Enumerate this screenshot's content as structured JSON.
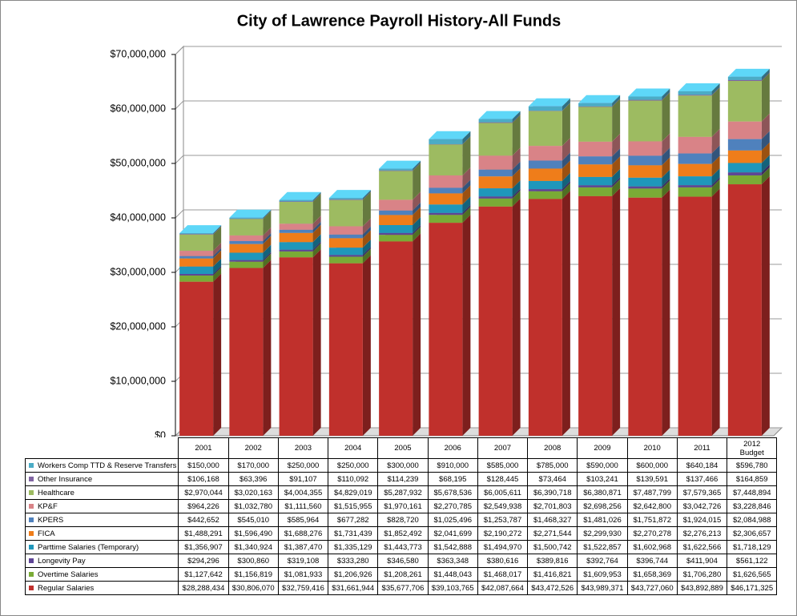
{
  "chart_data": {
    "type": "bar3d-stacked",
    "title": "City of Lawrence Payroll History-All Funds",
    "categories": [
      "2001",
      "2002",
      "2003",
      "2004",
      "2005",
      "2006",
      "2007",
      "2008",
      "2009",
      "2010",
      "2011",
      "2012 Budget"
    ],
    "ylim": [
      0,
      70000000
    ],
    "yticks": [
      {
        "value": 0,
        "label": "$0"
      },
      {
        "value": 10000000,
        "label": "$10,000,000"
      },
      {
        "value": 20000000,
        "label": "$20,000,000"
      },
      {
        "value": 30000000,
        "label": "$30,000,000"
      },
      {
        "value": 40000000,
        "label": "$40,000,000"
      },
      {
        "value": 50000000,
        "label": "$50,000,000"
      },
      {
        "value": 60000000,
        "label": "$60,000,000"
      },
      {
        "value": 70000000,
        "label": "$70,000,000"
      }
    ],
    "grid": true,
    "series": [
      {
        "name": "Regular Salaries",
        "color": "#c0302c",
        "values": [
          28288434,
          30806070,
          32759416,
          31661944,
          35677706,
          39103765,
          42087664,
          43472526,
          43989371,
          43727060,
          43892889,
          46171325
        ],
        "value_labels": [
          "$28,288,434",
          "$30,806,070",
          "$32,759,416",
          "$31,661,944",
          "$35,677,706",
          "$39,103,765",
          "$42,087,664",
          "$43,472,526",
          "$43,989,371",
          "$43,727,060",
          "$43,892,889",
          "$46,171,325"
        ]
      },
      {
        "name": "Overtime Salaries",
        "color": "#7aab36",
        "values": [
          1127642,
          1156819,
          1081933,
          1206926,
          1208261,
          1448043,
          1468017,
          1416821,
          1609953,
          1658369,
          1706280,
          1626565
        ],
        "value_labels": [
          "$1,127,642",
          "$1,156,819",
          "$1,081,933",
          "$1,206,926",
          "$1,208,261",
          "$1,448,043",
          "$1,468,017",
          "$1,416,821",
          "$1,609,953",
          "$1,658,369",
          "$1,706,280",
          "$1,626,565"
        ]
      },
      {
        "name": "Longevity Pay",
        "color": "#5e4596",
        "values": [
          294296,
          300860,
          319108,
          333280,
          346580,
          363348,
          380616,
          389816,
          392764,
          396744,
          411904,
          561122
        ],
        "value_labels": [
          "$294,296",
          "$300,860",
          "$319,108",
          "$333,280",
          "$346,580",
          "$363,348",
          "$380,616",
          "$389,816",
          "$392,764",
          "$396,744",
          "$411,904",
          "$561,122"
        ]
      },
      {
        "name": "Parttime Salaries (Temporary)",
        "color": "#1f97bb",
        "values": [
          1356907,
          1340924,
          1387470,
          1335129,
          1443773,
          1542888,
          1494970,
          1500742,
          1522857,
          1602968,
          1622566,
          1718129
        ],
        "value_labels": [
          "$1,356,907",
          "$1,340,924",
          "$1,387,470",
          "$1,335,129",
          "$1,443,773",
          "$1,542,888",
          "$1,494,970",
          "$1,500,742",
          "$1,522,857",
          "$1,602,968",
          "$1,622,566",
          "$1,718,129"
        ]
      },
      {
        "name": "FICA",
        "color": "#ef7d1a",
        "values": [
          1488291,
          1596490,
          1688276,
          1731439,
          1852492,
          2041699,
          2190272,
          2271544,
          2299930,
          2270278,
          2276213,
          2306657
        ],
        "value_labels": [
          "$1,488,291",
          "$1,596,490",
          "$1,688,276",
          "$1,731,439",
          "$1,852,492",
          "$2,041,699",
          "$2,190,272",
          "$2,271,544",
          "$2,299,930",
          "$2,270,278",
          "$2,276,213",
          "$2,306,657"
        ]
      },
      {
        "name": "KPERS",
        "color": "#4f81bd",
        "values": [
          442652,
          545010,
          585964,
          677282,
          828720,
          1025496,
          1253787,
          1468327,
          1481026,
          1751872,
          1924015,
          2084988
        ],
        "value_labels": [
          "$442,652",
          "$545,010",
          "$585,964",
          "$677,282",
          "$828,720",
          "$1,025,496",
          "$1,253,787",
          "$1,468,327",
          "$1,481,026",
          "$1,751,872",
          "$1,924,015",
          "$2,084,988"
        ]
      },
      {
        "name": "KP&F",
        "color": "#d98387",
        "values": [
          964226,
          1032780,
          1111560,
          1515955,
          1970161,
          2270785,
          2549938,
          2701803,
          2698256,
          2642800,
          3042726,
          3228846
        ],
        "value_labels": [
          "$964,226",
          "$1,032,780",
          "$1,111,560",
          "$1,515,955",
          "$1,970,161",
          "$2,270,785",
          "$2,549,938",
          "$2,701,803",
          "$2,698,256",
          "$2,642,800",
          "$3,042,726",
          "$3,228,846"
        ]
      },
      {
        "name": "Healthcare",
        "color": "#9dbb61",
        "values": [
          2970044,
          3020163,
          4004355,
          4829019,
          5287932,
          5678536,
          6005611,
          6390718,
          6380871,
          7487799,
          7579365,
          7448894
        ],
        "value_labels": [
          "$2,970,044",
          "$3,020,163",
          "$4,004,355",
          "$4,829,019",
          "$5,287,932",
          "$5,678,536",
          "$6,005,611",
          "$6,390,718",
          "$6,380,871",
          "$7,487,799",
          "$7,579,365",
          "$7,448,894"
        ]
      },
      {
        "name": "Other Insurance",
        "color": "#8064a2",
        "values": [
          106168,
          63396,
          91107,
          110092,
          114239,
          68195,
          128445,
          73464,
          103241,
          139591,
          137466,
          164859
        ],
        "value_labels": [
          "$106,168",
          "$63,396",
          "$91,107",
          "$110,092",
          "$114,239",
          "$68,195",
          "$128,445",
          "$73,464",
          "$103,241",
          "$139,591",
          "$137,466",
          "$164,859"
        ]
      },
      {
        "name": "Workers Comp TTD & Reserve Transfers",
        "color": "#4bacc6",
        "values": [
          150000,
          170000,
          250000,
          250000,
          300000,
          910000,
          585000,
          785000,
          590000,
          600000,
          640184,
          596780
        ],
        "value_labels": [
          "$150,000",
          "$170,000",
          "$250,000",
          "$250,000",
          "$300,000",
          "$910,000",
          "$585,000",
          "$785,000",
          "$590,000",
          "$600,000",
          "$640,184",
          "$596,780"
        ]
      }
    ]
  }
}
